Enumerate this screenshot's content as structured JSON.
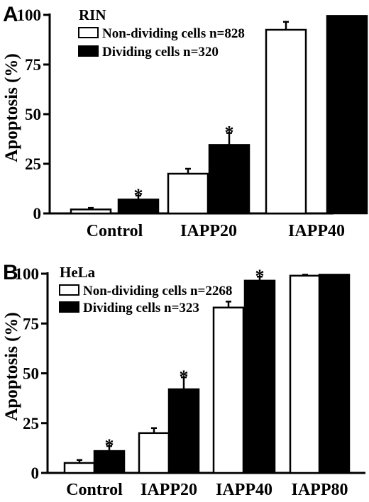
{
  "colors": {
    "non_dividing": "#ffffff",
    "dividing": "#000000",
    "axis": "#000000"
  },
  "chart_data": [
    {
      "type": "bar",
      "panel": "A",
      "title": "RIN",
      "xlabel": "",
      "ylabel": "Apoptosis (%)",
      "ylim": [
        0,
        100
      ],
      "yticks": [
        "0",
        "25",
        "50",
        "75",
        "100"
      ],
      "categories": [
        "Control",
        "IAPP20",
        "IAPP40"
      ],
      "series": [
        {
          "name": "Non-dividing cells n=828",
          "values": [
            2,
            20,
            92.5
          ],
          "errors": [
            0.8,
            2.5,
            4
          ],
          "significant": [
            false,
            false,
            false
          ]
        },
        {
          "name": "Dividing cells n=320",
          "values": [
            7,
            34.5,
            99.5
          ],
          "errors": [
            2,
            6,
            0
          ],
          "significant": [
            true,
            true,
            false
          ]
        }
      ],
      "legend_position": "top-left",
      "significance_marker": "*"
    },
    {
      "type": "bar",
      "panel": "B",
      "title": "HeLa",
      "xlabel": "",
      "ylabel": "Apoptosis (%)",
      "ylim": [
        0,
        100
      ],
      "yticks": [
        "0",
        "25",
        "50",
        "75",
        "100"
      ],
      "categories": [
        "Control",
        "IAPP20",
        "IAPP40",
        "IAPP80"
      ],
      "series": [
        {
          "name": "Non-dividing cells n=2268",
          "values": [
            5,
            20,
            83,
            99
          ],
          "errors": [
            1.5,
            2.5,
            3,
            0.5
          ],
          "significant": [
            false,
            false,
            false,
            false
          ]
        },
        {
          "name": "Dividing cells n=323",
          "values": [
            11,
            42,
            96.5,
            99.5
          ],
          "errors": [
            2.5,
            6,
            2,
            0
          ],
          "significant": [
            true,
            true,
            true,
            false
          ]
        }
      ],
      "legend_position": "top-left",
      "significance_marker": "*"
    }
  ]
}
